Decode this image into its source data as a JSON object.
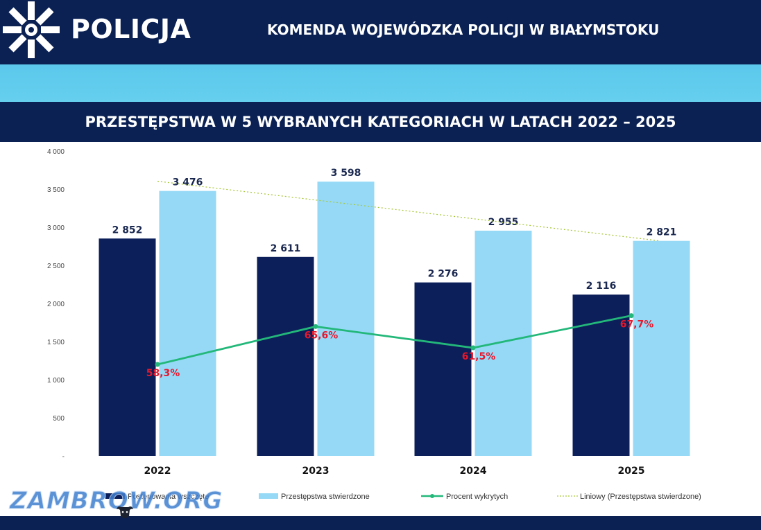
{
  "header": {
    "logo_text": "POLICJA",
    "title": "KOMENDA WOJEWÓDZKA POLICJI W BIAŁYMSTOKU",
    "logo_icon": "police-star-icon"
  },
  "watermark": {
    "text": "ZAMBROW.ORG",
    "icon": "bison-icon"
  },
  "colors": {
    "navy": "#0b2154",
    "dark_bar": "#0c1f5a",
    "light_bar": "#95d9f7",
    "cyan_band": "#5bc8ec",
    "line_green": "#23b87a",
    "trend_green": "#a9c93b",
    "pct_label_red": "#e8182c"
  },
  "chart_data": {
    "type": "bar",
    "title": "PRZESTĘPSTWA W 5 WYBRANYCH KATEGORIACH W LATACH 2022 – 2025",
    "categories": [
      "2022",
      "2023",
      "2024",
      "2025"
    ],
    "ylim": [
      0,
      4000
    ],
    "yticks": [
      0,
      500,
      1000,
      1500,
      2000,
      2500,
      3000,
      3500,
      4000
    ],
    "ytick_labels": [
      "-",
      "500",
      "1 000",
      "1 500",
      "2 000",
      "2 500",
      "3 000",
      "3 500",
      "4 000"
    ],
    "grid": false,
    "legend_position": "bottom",
    "series": [
      {
        "name": "Postępowania wszczęte",
        "type": "bar",
        "values": [
          2852,
          2611,
          2276,
          2116
        ],
        "labels": [
          "2 852",
          "2 611",
          "2 276",
          "2 116"
        ]
      },
      {
        "name": "Przestępstwa stwierdzone",
        "type": "bar",
        "values": [
          3476,
          3598,
          2955,
          2821
        ],
        "labels": [
          "3 476",
          "3 598",
          "2 955",
          "2 821"
        ]
      },
      {
        "name": "Procent wykrytych",
        "type": "line",
        "values": [
          58.3,
          65.6,
          61.5,
          67.7
        ],
        "labels": [
          "58,3%",
          "65,6%",
          "61,5%",
          "67,7%"
        ]
      },
      {
        "name": "Liniowy (Przestępstwa stwierdzone)",
        "type": "trendline",
        "of": "Przestępstwa stwierdzone"
      }
    ]
  }
}
